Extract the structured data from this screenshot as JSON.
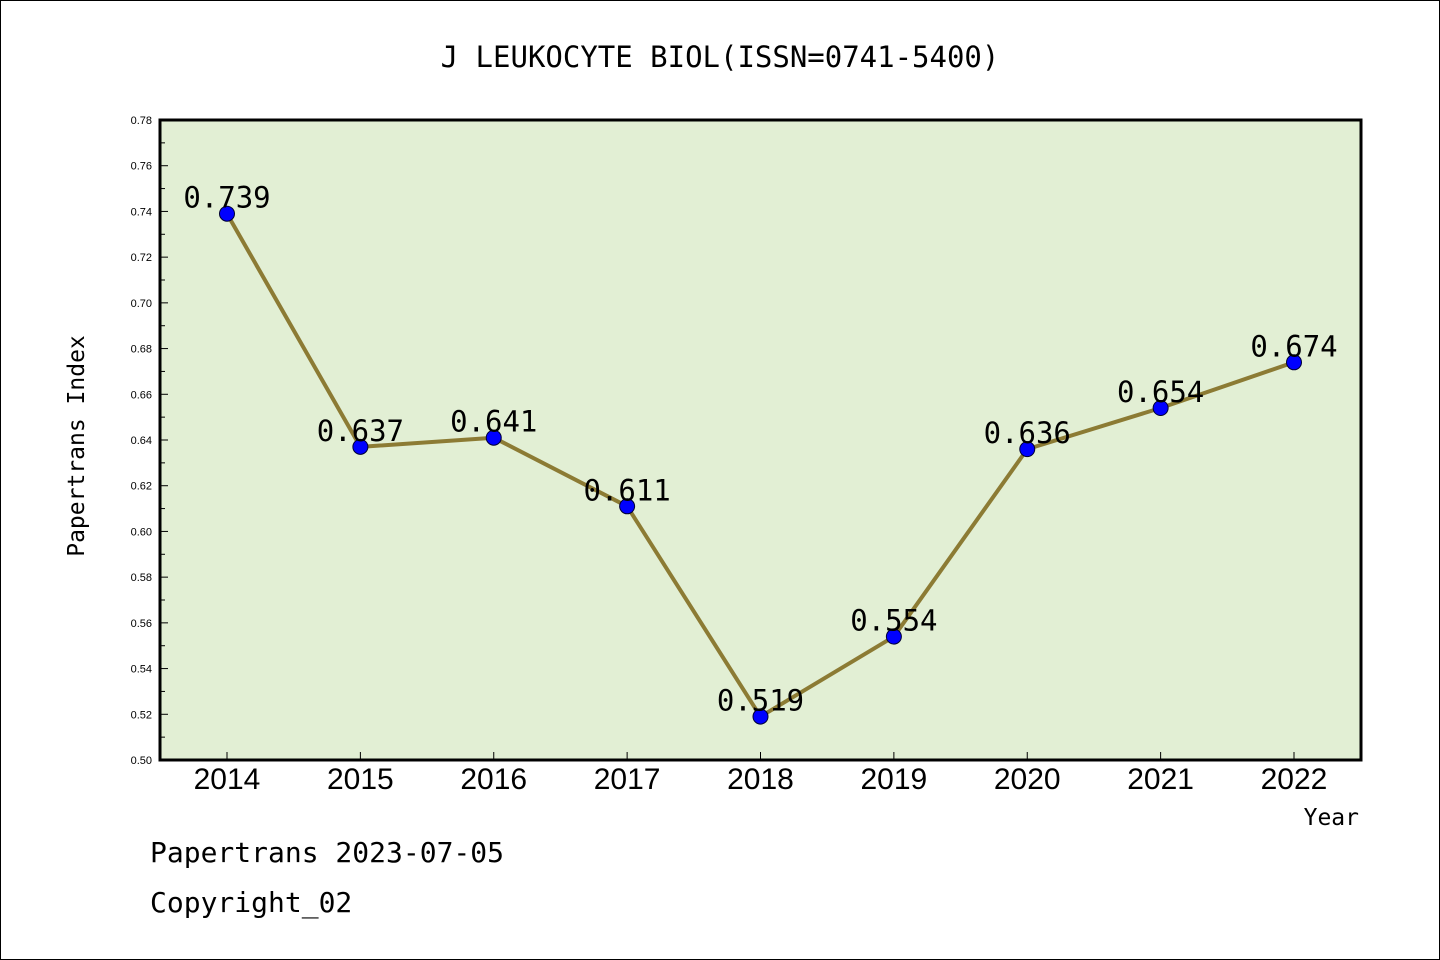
{
  "chart_data": {
    "type": "line",
    "title": "J LEUKOCYTE BIOL(ISSN=0741-5400)",
    "xlabel": "Year",
    "ylabel": "Papertrans Index",
    "categories": [
      "2014",
      "2015",
      "2016",
      "2017",
      "2018",
      "2019",
      "2020",
      "2021",
      "2022"
    ],
    "series": [
      {
        "values": [
          0.739,
          0.637,
          0.641,
          0.611,
          0.519,
          0.554,
          0.636,
          0.654,
          0.674
        ]
      }
    ],
    "data_labels": [
      "0.739",
      "0.637",
      "0.641",
      "0.611",
      "0.519",
      "0.554",
      "0.636",
      "0.654",
      "0.674"
    ],
    "ylim": [
      0.5,
      0.78
    ],
    "yticks": [
      "0.50",
      "0.52",
      "0.54",
      "0.56",
      "0.58",
      "0.60",
      "0.62",
      "0.64",
      "0.66",
      "0.68",
      "0.70",
      "0.72",
      "0.74",
      "0.76",
      "0.78"
    ],
    "grid": false,
    "legend": "none",
    "colors": {
      "plot_background": "#e2efd4",
      "line": "#8c7b34",
      "marker": "#0000ff"
    }
  },
  "footer": {
    "line1": "Papertrans 2023-07-05",
    "line2": "Copyright_02"
  }
}
